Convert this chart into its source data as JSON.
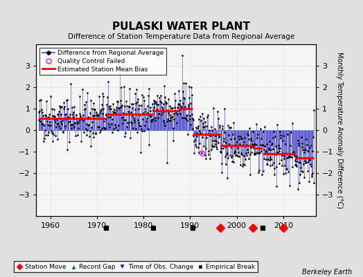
{
  "title": "PULASKI WATER PLANT",
  "subtitle": "Difference of Station Temperature Data from Regional Average",
  "ylabel": "Monthly Temperature Anomaly Difference (°C)",
  "xlabel_credit": "Berkeley Earth",
  "xlim": [
    1957,
    2017
  ],
  "ylim": [
    -4,
    4
  ],
  "yticks": [
    -3,
    -2,
    -1,
    0,
    1,
    2,
    3
  ],
  "xticks": [
    1960,
    1970,
    1980,
    1990,
    2000,
    2010
  ],
  "bg_color": "#e0e0e0",
  "plot_bg_color": "#f5f5f5",
  "segments": [
    {
      "x_start": 1957.5,
      "x_end": 1972.0,
      "bias": 0.55
    },
    {
      "x_start": 1972.0,
      "x_end": 1982.0,
      "bias": 0.75
    },
    {
      "x_start": 1982.0,
      "x_end": 1987.5,
      "bias": 0.9
    },
    {
      "x_start": 1987.5,
      "x_end": 1990.5,
      "bias": 1.0
    },
    {
      "x_start": 1990.5,
      "x_end": 1996.5,
      "bias": -0.2
    },
    {
      "x_start": 1996.5,
      "x_end": 2003.5,
      "bias": -0.7
    },
    {
      "x_start": 2003.5,
      "x_end": 2005.5,
      "bias": -0.85
    },
    {
      "x_start": 2005.5,
      "x_end": 2012.5,
      "bias": -1.1
    },
    {
      "x_start": 2012.5,
      "x_end": 2016.5,
      "bias": -1.3
    }
  ],
  "station_moves": [
    1996.5,
    2003.5,
    2010.0
  ],
  "empirical_breaks": [
    1972.0,
    1982.0,
    1990.5,
    2005.5
  ],
  "obs_changes": [],
  "record_gaps": [],
  "qc_failed_x": 1992.5,
  "qc_failed_y": -1.05,
  "tall_spike_x": 1988.3,
  "tall_spike_y": 3.5,
  "seed": 42
}
